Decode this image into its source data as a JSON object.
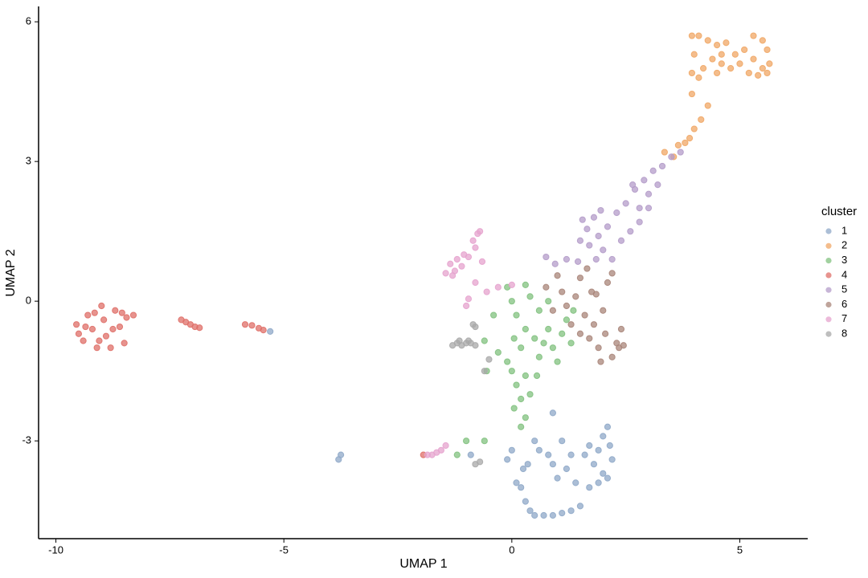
{
  "chart_data": {
    "type": "scatter",
    "x_label": "UMAP 1",
    "y_label": "UMAP 2",
    "legend_title": "cluster",
    "legend": "right",
    "grid": false,
    "xlim": [
      -10.38,
      6.49
    ],
    "ylim": [
      -5.1,
      6.33
    ],
    "xticks": [
      -10,
      -5,
      0,
      5
    ],
    "yticks": [
      -3,
      0,
      3,
      6
    ],
    "series": [
      {
        "name": "1",
        "color": "#8fa8c8",
        "x": [
          -0.1,
          0.1,
          0.2,
          0.25,
          0.3,
          0.4,
          0.5,
          0.7,
          0.9,
          1.1,
          1.3,
          1.5,
          0.6,
          0.5,
          0.8,
          0.9,
          1.0,
          1.2,
          1.3,
          1.4,
          1.6,
          1.7,
          1.8,
          1.9,
          2.0,
          2.1,
          2.15,
          2.2,
          2.0,
          1.9,
          2.1,
          1.7,
          0.9,
          1.1,
          0.35,
          0.0,
          -0.9,
          -5.3,
          -3.8,
          -3.75
        ],
        "values": [
          -3.4,
          -3.9,
          -4.0,
          -3.6,
          -4.3,
          -4.5,
          -4.6,
          -4.6,
          -4.6,
          -4.55,
          -4.5,
          -4.4,
          -3.2,
          -3.0,
          -3.3,
          -3.5,
          -3.8,
          -3.6,
          -3.3,
          -3.9,
          -3.3,
          -3.1,
          -3.5,
          -3.2,
          -2.9,
          -2.7,
          -3.1,
          -3.4,
          -3.7,
          -3.9,
          -3.8,
          -4.0,
          -2.4,
          -3.0,
          -3.5,
          -3.2,
          -3.3,
          -0.65,
          -3.4,
          -3.3
        ]
      },
      {
        "name": "2",
        "color": "#f0a766",
        "x": [
          3.95,
          4.1,
          4.3,
          4.5,
          4.7,
          4.9,
          5.1,
          5.3,
          5.5,
          5.6,
          5.65,
          5.6,
          5.4,
          5.2,
          5.0,
          4.8,
          4.6,
          4.4,
          4.2,
          4.0,
          3.95,
          3.95,
          4.1,
          4.5,
          5.3,
          4.3,
          4.15,
          4.0,
          3.9,
          3.8,
          3.65,
          3.55,
          3.35,
          4.6,
          5.5
        ],
        "values": [
          5.7,
          5.7,
          5.6,
          5.5,
          5.55,
          5.3,
          5.4,
          5.7,
          5.6,
          5.4,
          5.1,
          4.9,
          4.85,
          4.9,
          5.1,
          5.0,
          5.1,
          5.2,
          5.0,
          5.3,
          4.9,
          4.45,
          4.8,
          4.9,
          5.2,
          4.2,
          3.9,
          3.7,
          3.5,
          3.4,
          3.35,
          3.1,
          3.2,
          5.3,
          5.0
        ]
      },
      {
        "name": "3",
        "color": "#82c17f",
        "x": [
          -0.55,
          -0.4,
          -0.3,
          -0.1,
          0.0,
          0.1,
          0.05,
          0.2,
          0.3,
          0.4,
          0.5,
          0.6,
          0.7,
          0.8,
          0.9,
          1.0,
          1.1,
          1.2,
          1.3,
          1.35,
          0.8,
          0.6,
          0.3,
          0.1,
          0.2,
          0.05,
          0.3,
          0.2,
          0.4,
          0.55,
          0.0,
          -0.1,
          0.3,
          -0.6,
          -1.0,
          -0.6,
          -1.2
        ],
        "values": [
          -1.5,
          -0.3,
          -1.1,
          0.3,
          0.0,
          -0.3,
          -0.8,
          -1.0,
          -0.6,
          0.1,
          -0.8,
          -1.2,
          -0.9,
          -0.6,
          -1.0,
          -1.3,
          -0.7,
          -0.4,
          -0.9,
          -0.2,
          0.0,
          -0.2,
          -1.6,
          -1.8,
          -2.1,
          -2.3,
          -2.5,
          -2.7,
          -2.0,
          -1.6,
          -1.5,
          -1.3,
          0.35,
          -0.85,
          -3.0,
          -3.0,
          -3.3
        ]
      },
      {
        "name": "4",
        "color": "#df6f68",
        "x": [
          -9.55,
          -9.5,
          -9.4,
          -9.3,
          -9.2,
          -9.1,
          -9.0,
          -8.95,
          -8.9,
          -8.8,
          -8.7,
          -8.6,
          -8.5,
          -8.45,
          -8.3,
          -9.35,
          -9.15,
          -8.75,
          -9.05,
          -8.55,
          -7.25,
          -7.15,
          -7.05,
          -6.95,
          -6.85,
          -5.85,
          -5.7,
          -5.55,
          -5.45,
          -1.94
        ],
        "values": [
          -0.5,
          -0.7,
          -0.85,
          -0.3,
          -0.6,
          -1.0,
          -0.1,
          -0.4,
          -0.75,
          -1.0,
          -0.2,
          -0.55,
          -0.9,
          -0.35,
          -0.3,
          -0.55,
          -0.25,
          -0.6,
          -0.85,
          -0.25,
          -0.4,
          -0.45,
          -0.5,
          -0.55,
          -0.57,
          -0.5,
          -0.52,
          -0.58,
          -0.62,
          -3.3
        ]
      },
      {
        "name": "5",
        "color": "#b49cc9",
        "x": [
          0.75,
          0.95,
          1.2,
          1.45,
          1.5,
          1.65,
          1.8,
          1.9,
          2.0,
          2.1,
          1.7,
          1.85,
          2.3,
          2.5,
          2.7,
          2.8,
          2.9,
          3.0,
          3.1,
          3.2,
          3.3,
          3.5,
          3.7,
          2.6,
          2.4,
          2.8,
          1.55,
          2.2,
          3.0,
          2.65,
          1.95
        ],
        "values": [
          0.95,
          0.8,
          0.9,
          0.85,
          1.3,
          1.55,
          1.8,
          1.4,
          1.1,
          1.6,
          1.2,
          0.9,
          1.9,
          2.1,
          2.4,
          2.0,
          2.6,
          2.3,
          2.8,
          2.5,
          2.9,
          3.1,
          3.2,
          1.5,
          1.3,
          1.7,
          1.75,
          0.9,
          2.0,
          2.5,
          1.95
        ]
      },
      {
        "name": "6",
        "color": "#a9857a",
        "x": [
          0.75,
          0.9,
          1.1,
          1.2,
          1.3,
          1.4,
          1.5,
          1.6,
          1.7,
          1.75,
          1.8,
          1.9,
          2.0,
          2.05,
          2.1,
          2.2,
          2.3,
          2.4,
          2.35,
          1.65,
          1.85,
          2.2,
          1.5,
          1.95,
          2.45,
          1.0
        ],
        "values": [
          0.3,
          -0.2,
          0.2,
          -0.1,
          -0.5,
          0.1,
          0.5,
          -0.3,
          -0.8,
          0.2,
          -0.5,
          -1.0,
          -0.2,
          -0.7,
          0.4,
          -1.2,
          -0.9,
          -0.6,
          -1.0,
          0.7,
          0.15,
          0.6,
          -0.7,
          -1.3,
          -0.95,
          0.55
        ]
      },
      {
        "name": "7",
        "color": "#e6a3ce",
        "x": [
          -1.45,
          -1.35,
          -1.25,
          -1.2,
          -1.1,
          -1.05,
          -0.95,
          -0.8,
          -0.75,
          -0.7,
          -0.85,
          -0.65,
          -0.8,
          -1.3,
          -0.55,
          -0.95,
          -1.0,
          -1.75,
          -1.65,
          -1.55,
          -1.45,
          -1.85,
          -0.3,
          0.0
        ],
        "values": [
          0.6,
          0.8,
          0.65,
          0.9,
          0.75,
          1.0,
          0.95,
          1.15,
          1.45,
          1.5,
          1.3,
          0.85,
          0.4,
          0.55,
          0.2,
          0.05,
          -0.1,
          -3.3,
          -3.25,
          -3.2,
          -3.1,
          -3.3,
          0.3,
          0.35
        ]
      },
      {
        "name": "8",
        "color": "#a8a8a8",
        "x": [
          -1.3,
          -1.2,
          -1.1,
          -1.0,
          -0.9,
          -0.8,
          -1.15,
          -0.95,
          -0.85,
          -0.8,
          -0.5,
          -0.6,
          -0.8,
          -0.7
        ],
        "values": [
          -0.95,
          -0.9,
          -0.95,
          -0.9,
          -0.9,
          -0.95,
          -0.85,
          -0.85,
          -0.5,
          -0.55,
          -1.25,
          -1.5,
          -3.5,
          -3.45
        ]
      }
    ]
  }
}
